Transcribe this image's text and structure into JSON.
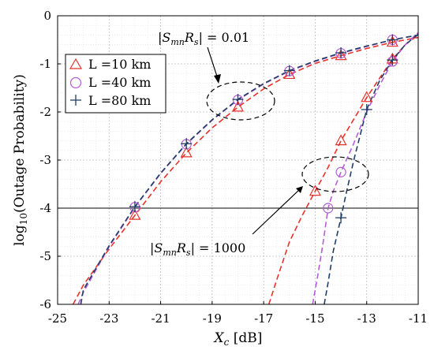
{
  "chart_data": {
    "type": "line",
    "xlabel": {
      "var": "X",
      "sub": "c",
      "unit": " [dB]"
    },
    "ylabel": {
      "pre": "log",
      "sub": "10",
      "post": "(Outage Probability)"
    },
    "xlim": [
      -25,
      -11
    ],
    "ylim": [
      -6,
      0
    ],
    "xticks": [
      -25,
      -23,
      -21,
      -19,
      -17,
      -15,
      -13,
      -11
    ],
    "yticks": [
      0,
      -1,
      -2,
      -3,
      -4,
      -5,
      -6
    ],
    "grid": true,
    "legend_position": "top-left",
    "threshold_line": -4,
    "legend": [
      {
        "label": "L =10 km",
        "marker": "triangle",
        "color": "#e8322a"
      },
      {
        "label": "L =40 km",
        "marker": "circle",
        "color": "#b55cd6"
      },
      {
        "label": "L =80 km",
        "marker": "plus",
        "color": "#1f3e66"
      }
    ],
    "annotations": [
      {
        "text": "|SmnRs| = 0.01",
        "parts": [
          "S",
          "mn",
          "R",
          "s"
        ],
        "value": "0.01"
      },
      {
        "text": "|SmnRs| = 1000",
        "parts": [
          "S",
          "mn",
          "R",
          "s"
        ],
        "value": "1000"
      }
    ],
    "series": [
      {
        "group": "0.01",
        "color": "#e8322a",
        "marker": "triangle",
        "x": [
          -24.4,
          -24,
          -23,
          -22,
          -21,
          -20,
          -19,
          -18,
          -17,
          -16,
          -15,
          -14,
          -13,
          -12,
          -11
        ],
        "y": [
          -6.0,
          -5.6,
          -4.85,
          -4.15,
          -3.45,
          -2.85,
          -2.33,
          -1.9,
          -1.52,
          -1.22,
          -0.99,
          -0.83,
          -0.68,
          -0.55,
          -0.45
        ],
        "markers_x": [
          -22,
          -20,
          -18,
          -16,
          -14,
          -12
        ],
        "markers_y": [
          -4.15,
          -2.85,
          -1.9,
          -1.22,
          -0.83,
          -0.55
        ]
      },
      {
        "group": "0.01",
        "color": "#b55cd6",
        "marker": "circle",
        "x": [
          -24.2,
          -24,
          -23,
          -22,
          -21,
          -20,
          -19,
          -18,
          -17,
          -16,
          -15,
          -14,
          -13,
          -12,
          -11
        ],
        "y": [
          -6.0,
          -5.75,
          -4.8,
          -3.98,
          -3.28,
          -2.67,
          -2.17,
          -1.75,
          -1.42,
          -1.15,
          -0.95,
          -0.78,
          -0.64,
          -0.5,
          -0.4
        ],
        "markers_x": [
          -22,
          -20,
          -18,
          -16,
          -14,
          -12
        ],
        "markers_y": [
          -3.98,
          -2.67,
          -1.75,
          -1.15,
          -0.78,
          -0.5
        ]
      },
      {
        "group": "0.01",
        "color": "#1f3e66",
        "marker": "plus",
        "x": [
          -24.1,
          -24,
          -23,
          -22,
          -21,
          -20,
          -19,
          -18,
          -17,
          -16,
          -15,
          -14,
          -13,
          -12,
          -11
        ],
        "y": [
          -6.0,
          -5.7,
          -4.78,
          -3.97,
          -3.27,
          -2.66,
          -2.16,
          -1.74,
          -1.41,
          -1.14,
          -0.94,
          -0.77,
          -0.63,
          -0.5,
          -0.4
        ],
        "markers_x": [
          -22,
          -20,
          -18,
          -16,
          -14,
          -12
        ],
        "markers_y": [
          -3.97,
          -2.66,
          -1.74,
          -1.14,
          -0.77,
          -0.5
        ]
      },
      {
        "group": "1000",
        "color": "#e8322a",
        "marker": "triangle",
        "x": [
          -16.8,
          -16.5,
          -16,
          -15.5,
          -15,
          -14.5,
          -14,
          -13.5,
          -13,
          -12.5,
          -12,
          -11.5,
          -11
        ],
        "y": [
          -6.0,
          -5.5,
          -4.7,
          -4.15,
          -3.65,
          -3.15,
          -2.6,
          -2.15,
          -1.7,
          -1.3,
          -0.9,
          -0.6,
          -0.4
        ],
        "markers_x": [
          -15,
          -14,
          -13,
          -12
        ],
        "markers_y": [
          -3.65,
          -2.6,
          -1.7,
          -0.9
        ]
      },
      {
        "group": "1000",
        "color": "#b55cd6",
        "marker": "circle",
        "x": [
          -15.1,
          -14.9,
          -14.7,
          -14.5,
          -14.3,
          -14,
          -13.5,
          -13,
          -12.5,
          -12,
          -11.5,
          -11
        ],
        "y": [
          -6.0,
          -5.4,
          -4.75,
          -4.0,
          -3.65,
          -3.25,
          -2.65,
          -2.0,
          -1.45,
          -0.95,
          -0.6,
          -0.35
        ],
        "markers_x": [
          -14.5,
          -14,
          -12
        ],
        "markers_y": [
          -4.0,
          -3.25,
          -0.95
        ]
      },
      {
        "group": "1000",
        "color": "#1f3e66",
        "marker": "plus",
        "x": [
          -14.65,
          -14.5,
          -14.3,
          -14,
          -13.8,
          -13.5,
          -13,
          -12.5,
          -12,
          -11.5,
          -11
        ],
        "y": [
          -6.0,
          -5.55,
          -4.9,
          -4.2,
          -3.7,
          -3.0,
          -1.95,
          -1.35,
          -0.92,
          -0.6,
          -0.38
        ],
        "markers_x": [
          -14,
          -13,
          -12
        ],
        "markers_y": [
          -4.2,
          -1.95,
          -0.92
        ]
      }
    ]
  }
}
